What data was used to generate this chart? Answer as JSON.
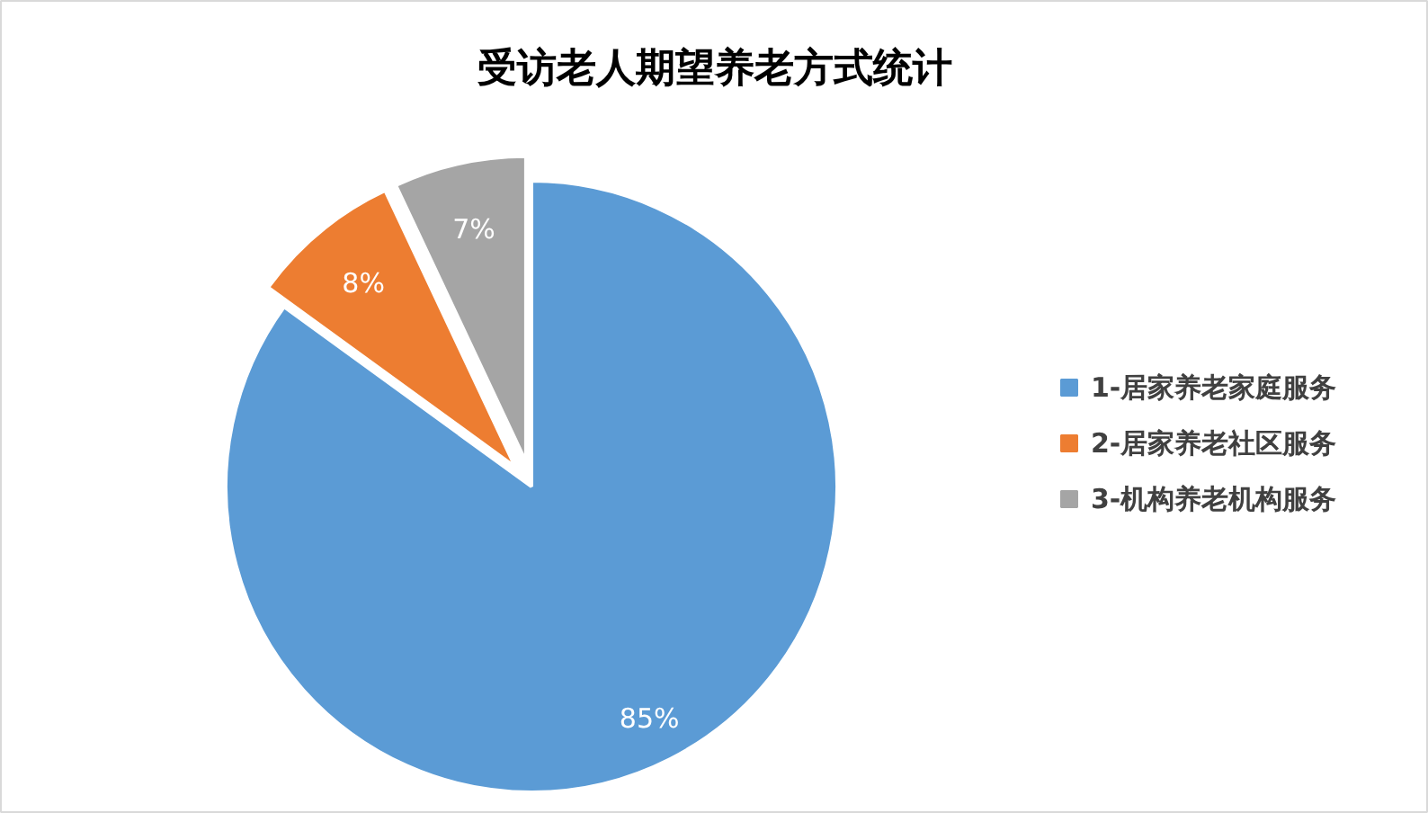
{
  "chart_data": {
    "type": "pie",
    "title": "受访老人期望养老方式统计",
    "categories": [
      "1-居家养老家庭服务",
      "2-居家养老社区服务",
      "3-机构养老机构服务"
    ],
    "values": [
      85,
      8,
      7
    ],
    "colors": [
      "#5b9bd5",
      "#ed7d31",
      "#a5a5a5"
    ],
    "value_labels": [
      "85%",
      "8%",
      "7%"
    ],
    "legend": "right"
  }
}
